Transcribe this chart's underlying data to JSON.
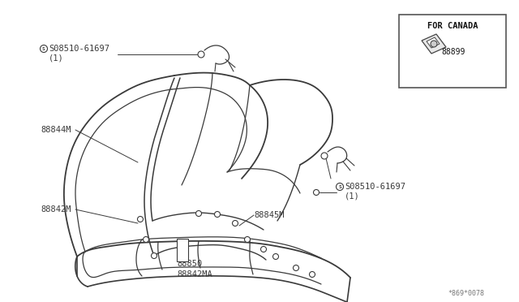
{
  "bg_color": "#ffffff",
  "line_color": "#3a3a3a",
  "labels": {
    "top_left_part": "S08510-61697",
    "top_left_qty": "(1)",
    "mid_left_upper": "88844M",
    "mid_left_lower": "88842M",
    "mid_bottom1": "88850",
    "mid_bottom2": "88842MA",
    "mid_right": "88845M",
    "right_part": "S08510-61697",
    "right_qty": "(1)",
    "canada_title": "FOR CANADA",
    "canada_part": "88899",
    "watermark": "*869*0078"
  },
  "font_size_main": 7.5,
  "font_size_small": 6.5,
  "font_size_watermark": 6
}
